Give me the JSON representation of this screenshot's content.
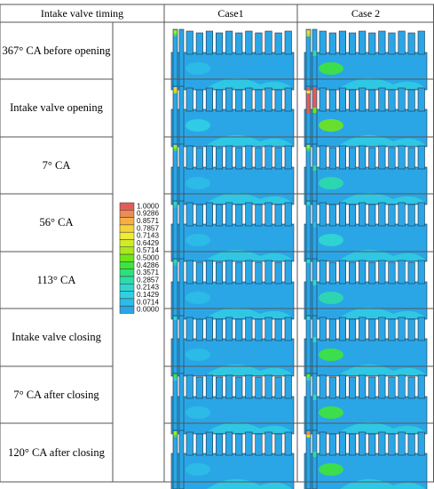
{
  "table": {
    "header": {
      "timing": "Intake valve timing",
      "case1": "Case1",
      "case2": "Case 2"
    },
    "rows": [
      {
        "label": "367° CA before opening",
        "c1": {
          "hot_left": 0.6,
          "hot_center": 0.0,
          "tall_red": 0.0,
          "swirl": 0.1
        },
        "c2": {
          "hot_left": 0.8,
          "hot_center": 0.3,
          "tall_red": 0.0,
          "swirl": 0.4
        }
      },
      {
        "label": "Intake valve opening",
        "c1": {
          "hot_left": 0.8,
          "hot_center": 0.0,
          "tall_red": 0.0,
          "swirl": 0.15
        },
        "c2": {
          "hot_left": 1.0,
          "hot_center": 0.5,
          "tall_red": 1.0,
          "swirl": 0.5
        }
      },
      {
        "label": "7° CA",
        "c1": {
          "hot_left": 0.6,
          "hot_center": 0.0,
          "tall_red": 0.0,
          "swirl": 0.1
        },
        "c2": {
          "hot_left": 0.6,
          "hot_center": 0.3,
          "tall_red": 0.0,
          "swirl": 0.3
        }
      },
      {
        "label": "56° CA",
        "c1": {
          "hot_left": 0.3,
          "hot_center": 0.0,
          "tall_red": 0.0,
          "swirl": 0.1
        },
        "c2": {
          "hot_left": 0.2,
          "hot_center": 0.1,
          "tall_red": 0.0,
          "swirl": 0.2
        }
      },
      {
        "label": "113° CA",
        "c1": {
          "hot_left": 0.3,
          "hot_center": 0.0,
          "tall_red": 0.0,
          "swirl": 0.1
        },
        "c2": {
          "hot_left": 0.2,
          "hot_center": 0.2,
          "tall_red": 0.0,
          "swirl": 0.3
        }
      },
      {
        "label": "Intake valve closing",
        "c1": {
          "hot_left": 0.2,
          "hot_center": 0.0,
          "tall_red": 0.0,
          "swirl": 0.1
        },
        "c2": {
          "hot_left": 0.2,
          "hot_center": 0.2,
          "tall_red": 0.0,
          "swirl": 0.4
        }
      },
      {
        "label": "7° CA after closing",
        "c1": {
          "hot_left": 0.4,
          "hot_center": 0.0,
          "tall_red": 0.0,
          "swirl": 0.1
        },
        "c2": {
          "hot_left": 0.5,
          "hot_center": 0.2,
          "tall_red": 0.0,
          "swirl": 0.4
        }
      },
      {
        "label": "120° CA after closing",
        "c1": {
          "hot_left": 0.6,
          "hot_center": 0.0,
          "tall_red": 0.0,
          "swirl": 0.1
        },
        "c2": {
          "hot_left": 0.9,
          "hot_center": 0.3,
          "tall_red": 0.0,
          "swirl": 0.4
        }
      }
    ]
  },
  "legend": {
    "values": [
      "1.0000",
      "0.9286",
      "0.8571",
      "0.7857",
      "0.7143",
      "0.6429",
      "0.5714",
      "0.5000",
      "0.4286",
      "0.3571",
      "0.2857",
      "0.2143",
      "0.1429",
      "0.0714",
      "0.0000"
    ],
    "colors": [
      "#e25b5b",
      "#ee8a53",
      "#f4b043",
      "#f6d23c",
      "#eeec34",
      "#d0ec27",
      "#a8e81e",
      "#6fe61b",
      "#3fe43a",
      "#2ee07a",
      "#2edbaa",
      "#2fd8cf",
      "#31cfe4",
      "#2cbce7",
      "#2aa6e6"
    ]
  },
  "colors": {
    "body": "#2aa6e6",
    "low": "#31cfe4",
    "grid": "#555555"
  }
}
